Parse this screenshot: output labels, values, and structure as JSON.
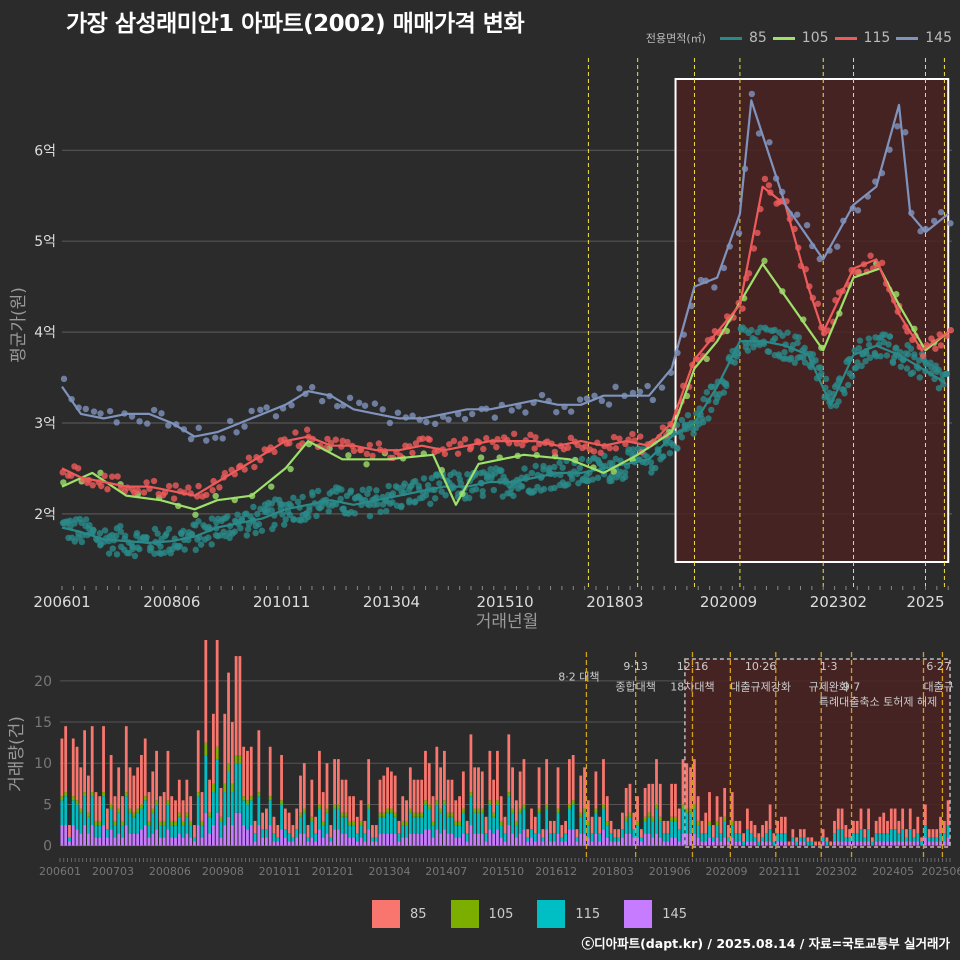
{
  "title": "가장 삼성래미안1 아파트(2002) 매매가격 변화",
  "legend_title": "전용면적(㎡)",
  "credit": "ⓒ디아파트(dapt.kr) / 2025.08.14 / 자료=국토교통부 실거래가",
  "colors": {
    "background": "#2b2b2b",
    "grid": "#555555",
    "s85_line": "#2a8a8a",
    "s105_line": "#9ee06a",
    "s115_line": "#ef5b5b",
    "s145_line": "#7f93bd",
    "bar85": "#f8766d",
    "bar105": "#7cae00",
    "bar115": "#00bfc4",
    "bar145": "#c77cff",
    "highlight_box": "#4a2222",
    "policy_line": "#f0e040",
    "policy_line_bottom": "#d4a020"
  },
  "chart_data": [
    {
      "type": "line",
      "id": "price",
      "xlabel": "거래년월",
      "ylabel": "평균가(원)",
      "x_range": [
        "2006-01",
        "2025-08"
      ],
      "ylim": [
        1.25,
        6.95
      ],
      "y_ticks": [
        {
          "value": 2,
          "label": "2억"
        },
        {
          "value": 3,
          "label": "3억"
        },
        {
          "value": 4,
          "label": "4억"
        },
        {
          "value": 5,
          "label": "5억"
        },
        {
          "value": 6,
          "label": "6억"
        }
      ],
      "x_ticks": [
        "200601",
        "200806",
        "201011",
        "201304",
        "201510",
        "201803",
        "202009",
        "202302",
        "2025"
      ],
      "highlight_range": [
        "2019-07",
        "2025-07"
      ],
      "policy_lines": [
        "2017-08",
        "2018-09",
        "2019-12",
        "2020-12",
        "2022-10",
        "2023-06",
        "2025-01",
        "2025-06"
      ],
      "series": [
        {
          "name": "85",
          "points": [
            [
              "2006-01",
              1.85
            ],
            [
              "2006-06",
              1.8
            ],
            [
              "2006-12",
              1.72
            ],
            [
              "2007-06",
              1.7
            ],
            [
              "2007-12",
              1.68
            ],
            [
              "2008-06",
              1.7
            ],
            [
              "2008-12",
              1.75
            ],
            [
              "2009-06",
              1.85
            ],
            [
              "2009-12",
              1.9
            ],
            [
              "2010-06",
              1.95
            ],
            [
              "2010-12",
              2.05
            ],
            [
              "2011-06",
              2.1
            ],
            [
              "2011-12",
              2.15
            ],
            [
              "2012-06",
              2.1
            ],
            [
              "2012-12",
              2.15
            ],
            [
              "2013-06",
              2.2
            ],
            [
              "2013-12",
              2.25
            ],
            [
              "2014-06",
              2.3
            ],
            [
              "2014-12",
              2.3
            ],
            [
              "2015-06",
              2.35
            ],
            [
              "2015-12",
              2.35
            ],
            [
              "2016-06",
              2.4
            ],
            [
              "2016-12",
              2.45
            ],
            [
              "2017-06",
              2.45
            ],
            [
              "2017-12",
              2.5
            ],
            [
              "2018-06",
              2.55
            ],
            [
              "2018-12",
              2.6
            ],
            [
              "2019-06",
              2.85
            ],
            [
              "2019-12",
              3.0
            ],
            [
              "2020-06",
              3.4
            ],
            [
              "2020-12",
              3.9
            ],
            [
              "2021-06",
              3.9
            ],
            [
              "2021-12",
              3.85
            ],
            [
              "2022-06",
              3.75
            ],
            [
              "2022-12",
              3.2
            ],
            [
              "2023-06",
              3.75
            ],
            [
              "2023-12",
              3.85
            ],
            [
              "2024-06",
              3.75
            ],
            [
              "2024-12",
              3.6
            ],
            [
              "2025-06",
              3.45
            ]
          ]
        },
        {
          "name": "105",
          "points": [
            [
              "2006-01",
              2.3
            ],
            [
              "2006-09",
              2.45
            ],
            [
              "2007-06",
              2.2
            ],
            [
              "2008-03",
              2.15
            ],
            [
              "2008-12",
              2.05
            ],
            [
              "2009-06",
              2.15
            ],
            [
              "2010-03",
              2.2
            ],
            [
              "2010-12",
              2.5
            ],
            [
              "2011-06",
              2.8
            ],
            [
              "2012-03",
              2.6
            ],
            [
              "2013-03",
              2.6
            ],
            [
              "2014-03",
              2.65
            ],
            [
              "2014-09",
              2.1
            ],
            [
              "2015-03",
              2.55
            ],
            [
              "2016-03",
              2.65
            ],
            [
              "2017-03",
              2.6
            ],
            [
              "2017-12",
              2.45
            ],
            [
              "2018-09",
              2.65
            ],
            [
              "2019-06",
              2.9
            ],
            [
              "2019-12",
              3.6
            ],
            [
              "2020-06",
              3.9
            ],
            [
              "2021-06",
              4.75
            ],
            [
              "2022-10",
              3.8
            ],
            [
              "2023-06",
              4.6
            ],
            [
              "2024-01",
              4.7
            ],
            [
              "2024-06",
              4.3
            ],
            [
              "2025-01",
              3.8
            ],
            [
              "2025-07",
              4.0
            ]
          ]
        },
        {
          "name": "115",
          "points": [
            [
              "2006-01",
              2.5
            ],
            [
              "2006-06",
              2.4
            ],
            [
              "2006-12",
              2.35
            ],
            [
              "2007-06",
              2.3
            ],
            [
              "2007-12",
              2.3
            ],
            [
              "2008-06",
              2.25
            ],
            [
              "2008-12",
              2.2
            ],
            [
              "2009-06",
              2.35
            ],
            [
              "2009-12",
              2.5
            ],
            [
              "2010-06",
              2.65
            ],
            [
              "2010-12",
              2.8
            ],
            [
              "2011-06",
              2.85
            ],
            [
              "2011-12",
              2.75
            ],
            [
              "2012-06",
              2.75
            ],
            [
              "2012-12",
              2.7
            ],
            [
              "2013-06",
              2.7
            ],
            [
              "2013-12",
              2.75
            ],
            [
              "2014-06",
              2.7
            ],
            [
              "2014-12",
              2.75
            ],
            [
              "2015-06",
              2.8
            ],
            [
              "2015-12",
              2.8
            ],
            [
              "2016-06",
              2.8
            ],
            [
              "2016-12",
              2.75
            ],
            [
              "2017-06",
              2.8
            ],
            [
              "2017-12",
              2.75
            ],
            [
              "2018-06",
              2.8
            ],
            [
              "2018-12",
              2.75
            ],
            [
              "2019-06",
              3.0
            ],
            [
              "2019-12",
              3.7
            ],
            [
              "2020-06",
              4.0
            ],
            [
              "2020-12",
              4.3
            ],
            [
              "2021-06",
              5.6
            ],
            [
              "2021-12",
              5.4
            ],
            [
              "2022-06",
              4.5
            ],
            [
              "2022-10",
              4.0
            ],
            [
              "2023-06",
              4.7
            ],
            [
              "2023-12",
              4.8
            ],
            [
              "2024-06",
              4.2
            ],
            [
              "2024-12",
              3.8
            ],
            [
              "2025-07",
              4.0
            ]
          ]
        },
        {
          "name": "145",
          "points": [
            [
              "2006-01",
              3.4
            ],
            [
              "2006-06",
              3.1
            ],
            [
              "2006-12",
              3.05
            ],
            [
              "2007-06",
              3.1
            ],
            [
              "2007-12",
              3.1
            ],
            [
              "2008-06",
              3.0
            ],
            [
              "2008-12",
              2.85
            ],
            [
              "2009-06",
              2.9
            ],
            [
              "2009-12",
              3.0
            ],
            [
              "2010-06",
              3.1
            ],
            [
              "2010-12",
              3.2
            ],
            [
              "2011-06",
              3.35
            ],
            [
              "2011-12",
              3.3
            ],
            [
              "2012-06",
              3.15
            ],
            [
              "2012-12",
              3.1
            ],
            [
              "2013-06",
              3.05
            ],
            [
              "2013-12",
              3.05
            ],
            [
              "2014-06",
              3.1
            ],
            [
              "2014-12",
              3.15
            ],
            [
              "2015-06",
              3.15
            ],
            [
              "2015-12",
              3.2
            ],
            [
              "2016-06",
              3.25
            ],
            [
              "2016-12",
              3.2
            ],
            [
              "2017-06",
              3.2
            ],
            [
              "2017-12",
              3.3
            ],
            [
              "2018-06",
              3.3
            ],
            [
              "2018-12",
              3.3
            ],
            [
              "2019-06",
              3.6
            ],
            [
              "2019-12",
              4.5
            ],
            [
              "2020-06",
              4.6
            ],
            [
              "2020-12",
              5.3
            ],
            [
              "2021-03",
              6.55
            ],
            [
              "2021-12",
              5.4
            ],
            [
              "2022-10",
              4.8
            ],
            [
              "2023-06",
              5.4
            ],
            [
              "2023-12",
              5.6
            ],
            [
              "2024-06",
              6.5
            ],
            [
              "2024-09",
              5.3
            ],
            [
              "2025-01",
              5.1
            ],
            [
              "2025-07",
              5.3
            ]
          ]
        }
      ]
    },
    {
      "type": "bar",
      "id": "volume",
      "stacked": true,
      "ylabel": "거래량(건)",
      "x_range": [
        "2006-01",
        "2025-08"
      ],
      "ylim": [
        -1.5,
        23.5
      ],
      "y_ticks": [
        0,
        5,
        10,
        15,
        20
      ],
      "x_ticks": [
        "200601",
        "200703",
        "200806",
        "200908",
        "201011",
        "201201",
        "201304",
        "201407",
        "201510",
        "201612",
        "201803",
        "201906",
        "202009",
        "202111",
        "202302",
        "202405",
        "202506"
      ],
      "highlight_range": [
        "2019-10",
        "2025-08"
      ],
      "policy_lines": [
        "2017-08",
        "2018-09",
        "2019-12",
        "2020-10",
        "2021-10",
        "2022-10",
        "2023-06",
        "2025-01",
        "2025-06"
      ],
      "annotations": [
        {
          "x": "2017-06",
          "y": 20.5,
          "text": "8·2 대책"
        },
        {
          "x": "2018-09",
          "y": 21.8,
          "text": "9·13"
        },
        {
          "x": "2018-09",
          "y": 19.3,
          "text": "종합대책"
        },
        {
          "x": "2019-12",
          "y": 21.8,
          "text": "12·16"
        },
        {
          "x": "2019-12",
          "y": 19.3,
          "text": "18차대책"
        },
        {
          "x": "2021-06",
          "y": 21.8,
          "text": "10·26"
        },
        {
          "x": "2021-06",
          "y": 19.3,
          "text": "대출규제강화"
        },
        {
          "x": "2022-12",
          "y": 21.8,
          "text": "1·3"
        },
        {
          "x": "2022-12",
          "y": 19.3,
          "text": "규제완화"
        },
        {
          "x": "2023-06",
          "y": 19.3,
          "text": "9·7"
        },
        {
          "x": "2024-01",
          "y": 17.5,
          "text": "특례대출축소 토허제 해제"
        },
        {
          "x": "2025-05",
          "y": 21.8,
          "text": "6·27"
        },
        {
          "x": "2025-05",
          "y": 19.3,
          "text": "대출규"
        }
      ],
      "series": [
        {
          "name": "85",
          "by_year": [
            4.5,
            4.5,
            3.5,
            8.0,
            4.0,
            3.5,
            3.0,
            3.0,
            3.5,
            4.0,
            3.0,
            3.0,
            2.0,
            3.5,
            2.0,
            1.5,
            0.6,
            1.5,
            1.5,
            1.5
          ]
        },
        {
          "name": "105",
          "by_year": [
            0.4,
            0.4,
            0.4,
            0.8,
            0.4,
            0.3,
            0.3,
            0.3,
            0.4,
            0.4,
            0.3,
            0.3,
            0.2,
            0.3,
            0.2,
            0.1,
            0.1,
            0.1,
            0.1,
            0.1
          ]
        },
        {
          "name": "115",
          "by_year": [
            2.0,
            2.0,
            1.8,
            4.0,
            2.0,
            1.5,
            1.5,
            1.5,
            1.8,
            2.0,
            1.5,
            1.5,
            1.0,
            1.8,
            1.0,
            0.8,
            0.3,
            0.8,
            0.8,
            0.8
          ]
        },
        {
          "name": "145",
          "by_year": [
            1.5,
            1.5,
            1.2,
            2.5,
            1.5,
            1.0,
            1.0,
            1.0,
            1.2,
            1.3,
            1.0,
            1.0,
            0.8,
            1.0,
            0.6,
            0.4,
            0.2,
            0.4,
            0.4,
            0.5
          ]
        }
      ]
    }
  ]
}
